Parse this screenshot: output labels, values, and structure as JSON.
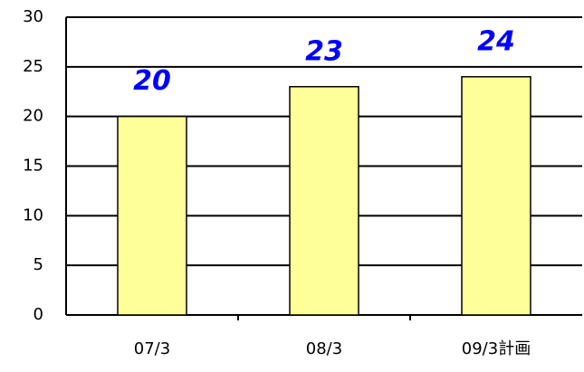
{
  "chart_data": {
    "type": "bar",
    "categories": [
      "07/3",
      "08/3",
      "09/3計画"
    ],
    "values": [
      20,
      23,
      24
    ],
    "color": "#ffff99",
    "label_color": "#0000ff",
    "ylim": [
      0,
      30
    ],
    "yticks": [
      0,
      5,
      10,
      15,
      20,
      25,
      30
    ],
    "grid": true
  }
}
